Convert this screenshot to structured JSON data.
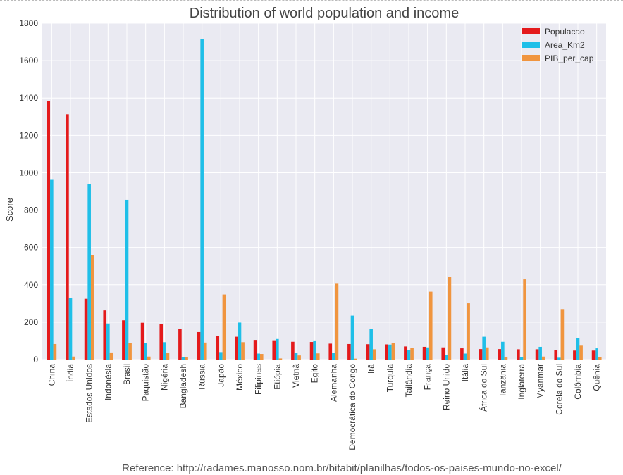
{
  "chart_data": {
    "type": "bar",
    "title": "Distribution of world population and income",
    "xlabel": "",
    "ylabel": "Score",
    "ylim": [
      0,
      1800
    ],
    "yticks": [
      0,
      200,
      400,
      600,
      800,
      1000,
      1200,
      1400,
      1600,
      1800
    ],
    "grid": true,
    "legend_position": "top-right",
    "categories": [
      "China",
      "Índia",
      "Estados Unidos",
      "Indonésia",
      "Brasil",
      "Paquistão",
      "Nigéria",
      "Bangladesh",
      "Rússia",
      "Japão",
      "México",
      "Filipinas",
      "Etiópia",
      "Vietnã",
      "Egito",
      "Alemanha",
      "Democrática do Congo",
      "Irã",
      "Turquia",
      "Tailândia",
      "França",
      "Reino Unido",
      "Itália",
      "África do Sul",
      "Tanzânia",
      "Inglaterra",
      "Myanmar",
      "Coreia do Sul",
      "Colômbia",
      "Quênia"
    ],
    "series": [
      {
        "name": "Populacao",
        "color": "#e41a1c",
        "values": [
          1383,
          1313,
          325,
          263,
          210,
          197,
          190,
          165,
          147,
          128,
          122,
          105,
          103,
          95,
          94,
          85,
          83,
          82,
          81,
          70,
          68,
          65,
          60,
          56,
          56,
          55,
          55,
          52,
          48,
          48
        ]
      },
      {
        "name": "Area_Km2",
        "color": "#1fbfe8",
        "values": [
          962,
          329,
          938,
          193,
          855,
          88,
          93,
          15,
          1717,
          40,
          198,
          32,
          110,
          35,
          102,
          37,
          235,
          165,
          80,
          52,
          65,
          25,
          32,
          122,
          95,
          14,
          68,
          10,
          115,
          60
        ]
      },
      {
        "name": "PIB_per_cap",
        "color": "#f0953f",
        "values": [
          83,
          16,
          558,
          38,
          88,
          16,
          35,
          12,
          91,
          348,
          93,
          30,
          6,
          22,
          33,
          409,
          5,
          55,
          90,
          62,
          363,
          441,
          301,
          65,
          12,
          429,
          16,
          270,
          78,
          14
        ]
      }
    ]
  },
  "reference": "Reference: http://radames.manosso.nom.br/bitabit/planilhas/todos-os-paises-mundo-no-excel/"
}
